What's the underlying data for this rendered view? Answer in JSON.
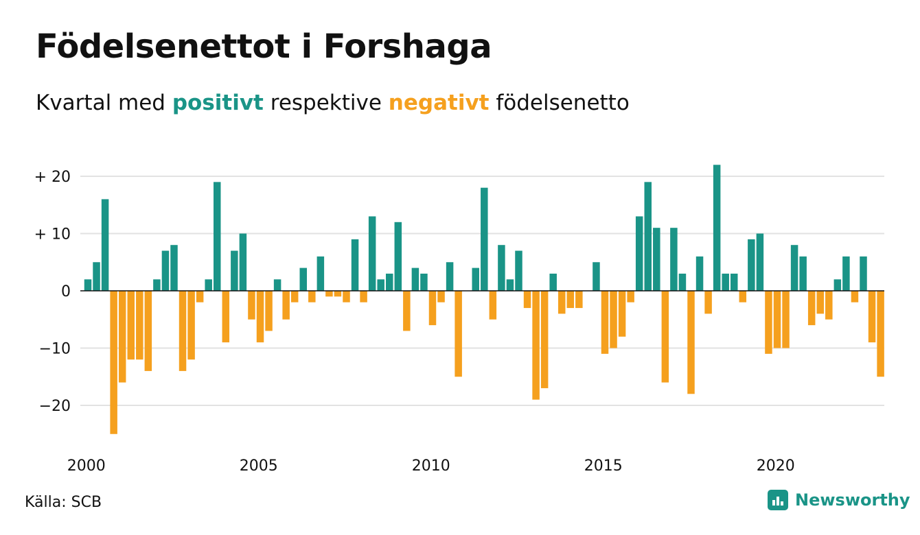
{
  "title": "Födelsenettot i Forshaga",
  "subtitle": {
    "prefix": "Kvartal med",
    "positive_word": "positivt",
    "middle": "respektive",
    "negative_word": "negativt",
    "suffix": "födelsenetto"
  },
  "source": "Källa: SCB",
  "brand": "Newsworthy",
  "colors": {
    "positive": "#1a9487",
    "negative": "#f5a01e",
    "grid": "#e2e2e2",
    "axis": "#111111",
    "brand": "#1a9487"
  },
  "chart_data": {
    "type": "bar",
    "x_start": "2000-Q1",
    "x_ticks": [
      "2000",
      "2005",
      "2010",
      "2015",
      "2020"
    ],
    "y_ticks": [
      {
        "value": 20,
        "label": "+ 20"
      },
      {
        "value": 10,
        "label": "+ 10"
      },
      {
        "value": 0,
        "label": "0"
      },
      {
        "value": -10,
        "label": "−10"
      },
      {
        "value": -20,
        "label": "−20"
      }
    ],
    "ylim": [
      -26,
      22
    ],
    "grid": true,
    "values": [
      2,
      5,
      16,
      -25,
      -16,
      -12,
      -12,
      -14,
      2,
      7,
      8,
      -14,
      -12,
      -2,
      2,
      19,
      -9,
      7,
      10,
      -5,
      -9,
      -7,
      2,
      -5,
      -2,
      4,
      -2,
      6,
      -1,
      -1,
      -2,
      9,
      -2,
      13,
      2,
      3,
      12,
      -7,
      4,
      3,
      -6,
      -2,
      5,
      -15,
      0,
      4,
      18,
      -5,
      8,
      2,
      7,
      -3,
      -19,
      -17,
      3,
      -4,
      -3,
      -3,
      0,
      5,
      -11,
      -10,
      -8,
      -2,
      13,
      19,
      11,
      -16,
      11,
      3,
      -18,
      6,
      -4,
      22,
      3,
      3,
      -2,
      9,
      10,
      -11,
      -10,
      -10,
      8,
      6,
      -6,
      -4,
      -5,
      2,
      6,
      -2,
      6,
      -9,
      -15
    ]
  }
}
